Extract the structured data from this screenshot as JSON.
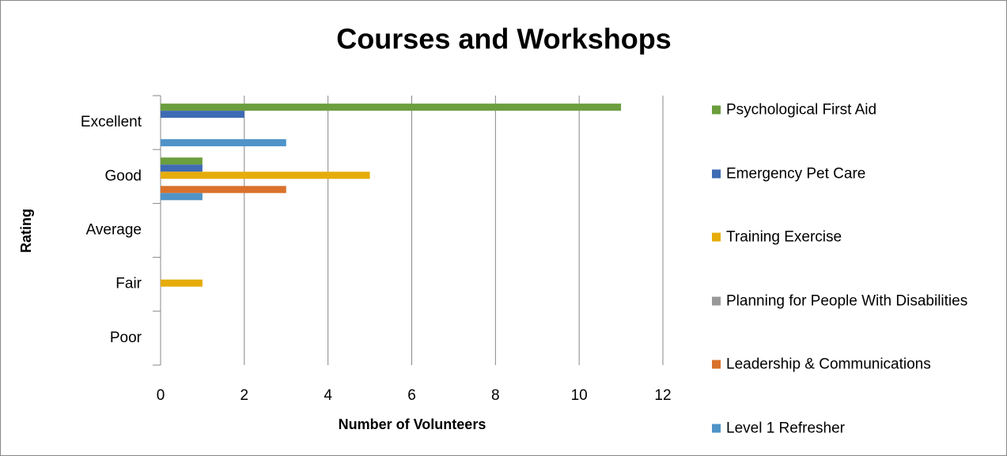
{
  "chart_data": {
    "type": "hbar",
    "title": "Courses and Workshops",
    "xlabel": "Number of Volunteers",
    "ylabel": "Rating",
    "categories": [
      "Excellent",
      "Good",
      "Average",
      "Fair",
      "Poor"
    ],
    "series": [
      {
        "name": "Psychological First Aid",
        "color": "#6b9e3e",
        "values": [
          11,
          1,
          0,
          0,
          0
        ]
      },
      {
        "name": "Emergency Pet Care",
        "color": "#3e6bb4",
        "values": [
          2,
          1,
          0,
          0,
          0
        ]
      },
      {
        "name": "Training Exercise",
        "color": "#e5ac0a",
        "values": [
          0,
          5,
          0,
          1,
          0
        ]
      },
      {
        "name": "Planning for People With Disabilities",
        "color": "#999999",
        "values": [
          0,
          0,
          0,
          0,
          0
        ]
      },
      {
        "name": "Leadership & Communications",
        "color": "#d9722c",
        "values": [
          0,
          3,
          0,
          0,
          0
        ]
      },
      {
        "name": "Level 1 Refresher",
        "color": "#4f93c8",
        "values": [
          3,
          1,
          0,
          0,
          0
        ]
      }
    ],
    "xlim": [
      0,
      12
    ],
    "xticks": [
      0,
      2,
      4,
      6,
      8,
      10,
      12
    ],
    "grid": true,
    "legend": "right"
  }
}
